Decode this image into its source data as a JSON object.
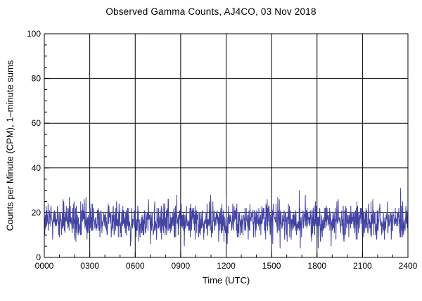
{
  "chart_data": {
    "type": "line",
    "title": "Observed Gamma Counts, AJ4CO, 03 Nov 2018",
    "xlabel": "Time (UTC)",
    "ylabel": "Counts per Minute (CPM), 1–minute sums",
    "xlim_minutes": [
      0,
      1440
    ],
    "ylim": [
      0,
      100
    ],
    "x_tick_labels": [
      "0000",
      "0300",
      "0600",
      "0900",
      "1200",
      "1500",
      "1800",
      "2100",
      "2400"
    ],
    "x_major_step_minutes": 180,
    "x_minor_step_minutes": 60,
    "y_tick_labels": [
      "0",
      "20",
      "40",
      "60",
      "80",
      "100"
    ],
    "y_major_step": 20,
    "y_minor_step": 5,
    "grid": true,
    "legend": "none",
    "colors": {
      "background": "#FFFFFF",
      "axis": "#000000",
      "grid": "#000000",
      "series": "#4343A3"
    },
    "series": [
      {
        "name": "gamma-counts-1min-sums",
        "color": "#4343A3",
        "points_per_day": 1440,
        "sampling": "1-minute sums",
        "approx_mean_cpm": 16.4,
        "approx_stddev_cpm": 4.1,
        "observed_min_cpm": 4,
        "observed_max_cpm": 31,
        "distribution": "poisson-like background noise",
        "seed": 20181103
      }
    ]
  }
}
